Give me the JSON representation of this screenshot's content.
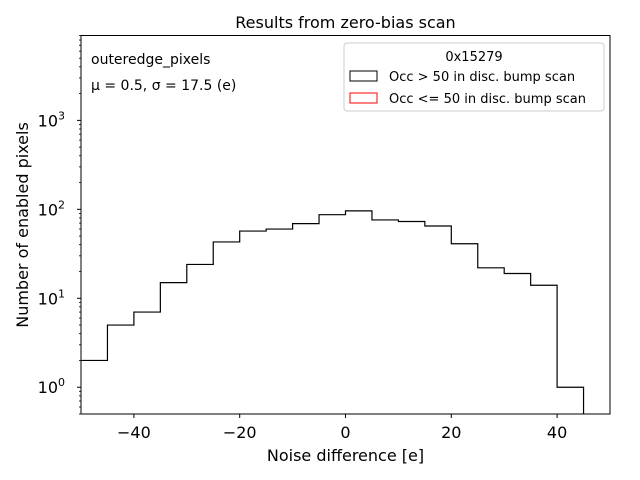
{
  "chart_data": {
    "type": "histogram",
    "title": "Results from zero-bias scan",
    "xlabel": "Noise difference [e]",
    "ylabel": "Number of enabled pixels",
    "xlim": [
      -50,
      50
    ],
    "ylim": [
      0.5,
      9000
    ],
    "yscale": "log",
    "x_ticks": [
      -40,
      -20,
      0,
      20,
      40
    ],
    "x_tick_labels": [
      "−40",
      "−20",
      "0",
      "20",
      "40"
    ],
    "y_ticks": [
      1,
      10,
      100,
      1000
    ],
    "y_tick_base": "10",
    "y_tick_exponents": [
      "0",
      "1",
      "2",
      "3"
    ],
    "annotations": {
      "label": "outeredge_pixels",
      "stats": "μ = 0.5, σ = 17.5 (e)"
    },
    "legend": {
      "title": "0x15279",
      "placement": "top-right",
      "entries": [
        {
          "label": "Occ > 50 in disc. bump scan",
          "color": "#000000"
        },
        {
          "label": "Occ <= 50 in disc. bump scan",
          "color": "#ff0000"
        }
      ]
    },
    "bin_edges": [
      -50,
      -45,
      -40,
      -35,
      -30,
      -25,
      -20,
      -15,
      -10,
      -5,
      0,
      5,
      10,
      15,
      20,
      25,
      30,
      35,
      40,
      45
    ],
    "series": [
      {
        "name": "Occ > 50 in disc. bump scan",
        "color": "#000000",
        "values": [
          2,
          5,
          7,
          15,
          24,
          43,
          57,
          60,
          69,
          87,
          96,
          76,
          73,
          65,
          41,
          22,
          19,
          14,
          1
        ]
      },
      {
        "name": "Occ <= 50 in disc. bump scan",
        "color": "#ff0000",
        "values": []
      }
    ]
  }
}
